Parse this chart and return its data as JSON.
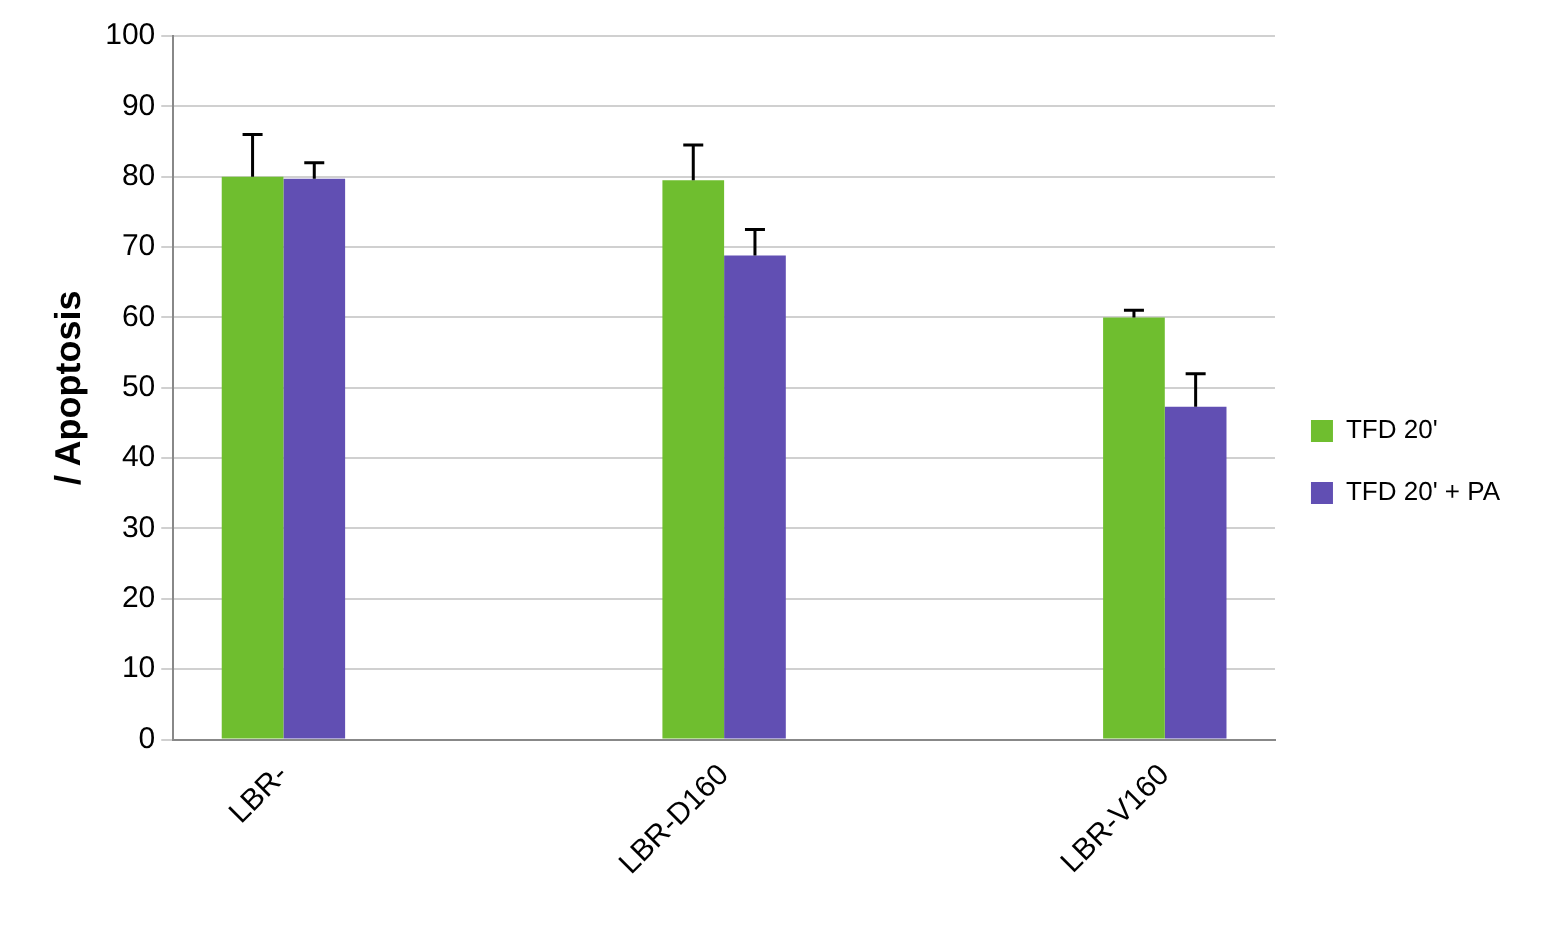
{
  "chart_data": {
    "type": "bar",
    "ylabel": "/ Apoptosis",
    "categories": [
      "LBR-",
      null,
      "LBR-D160",
      null,
      "LBR-V160"
    ],
    "series": [
      {
        "name": "TFD 20'",
        "color": "#6fbe2f",
        "values": [
          80,
          null,
          79.5,
          null,
          60
        ],
        "errors": [
          [
            80,
            86
          ],
          null,
          [
            79.5,
            84.5
          ],
          null,
          [
            60,
            61
          ]
        ]
      },
      {
        "name": "TFD 20' + PA",
        "color": "#614fb3",
        "values": [
          79.7,
          null,
          68.8,
          null,
          47.3
        ],
        "errors": [
          [
            79.7,
            82
          ],
          null,
          [
            68.8,
            72.5
          ],
          null,
          [
            47.3,
            52
          ]
        ]
      }
    ],
    "ylim": [
      0,
      100
    ],
    "yticks": [
      0,
      10,
      20,
      30,
      40,
      50,
      60,
      70,
      80,
      90,
      100
    ],
    "grid": "y",
    "legend": "right"
  }
}
